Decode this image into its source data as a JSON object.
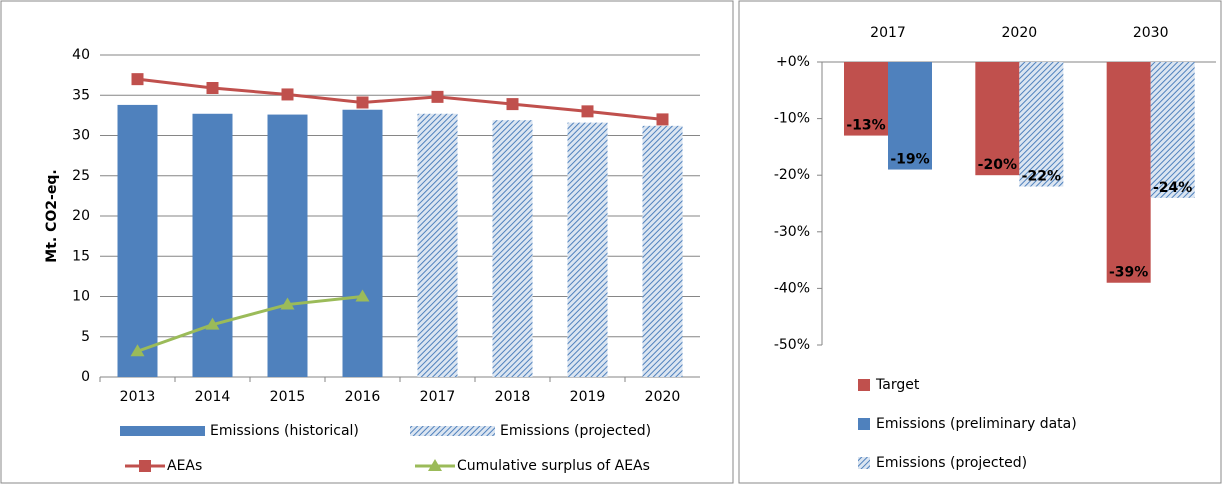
{
  "chart_data": [
    {
      "type": "combo",
      "y_label": "Mt. CO2-eq.",
      "categories": [
        "2013",
        "2014",
        "2015",
        "2016",
        "2017",
        "2018",
        "2019",
        "2020"
      ],
      "ylim": [
        0,
        40
      ],
      "yticks": [
        0,
        5,
        10,
        15,
        20,
        25,
        30,
        35,
        40
      ],
      "grid": true,
      "series": [
        {
          "name": "Emissions (historical)",
          "kind": "bar",
          "pattern": "solid",
          "color": "#4f81bd",
          "values": [
            33.8,
            32.7,
            32.6,
            33.2,
            null,
            null,
            null,
            null
          ]
        },
        {
          "name": "Emissions (projected)",
          "kind": "bar",
          "pattern": "hatch",
          "color": "#4f81bd",
          "values": [
            null,
            null,
            null,
            null,
            32.7,
            31.9,
            31.6,
            31.2
          ]
        },
        {
          "name": "AEAs",
          "kind": "line",
          "marker": "square",
          "color": "#c0504d",
          "values": [
            37.0,
            35.9,
            35.1,
            34.1,
            34.8,
            33.9,
            33.0,
            32.0
          ]
        },
        {
          "name": "Cumulative surplus of AEAs",
          "kind": "line",
          "marker": "triangle",
          "color": "#9bbb59",
          "values": [
            3.2,
            6.5,
            9.0,
            10.0,
            null,
            null,
            null,
            null
          ]
        }
      ]
    },
    {
      "type": "bar",
      "categories": [
        "2017",
        "2020",
        "2030"
      ],
      "ylim": [
        -50,
        0
      ],
      "yticks": [
        {
          "value": 0,
          "label": "+0%"
        },
        {
          "value": -10,
          "label": "-10%"
        },
        {
          "value": -20,
          "label": "-20%"
        },
        {
          "value": -30,
          "label": "-30%"
        },
        {
          "value": -40,
          "label": "-40%"
        },
        {
          "value": -50,
          "label": "-50%"
        }
      ],
      "series": [
        {
          "name": "Target",
          "pattern": "solid",
          "color": "#c0504d",
          "values": [
            -13,
            -20,
            -39
          ],
          "value_labels": [
            "-13%",
            "-20%",
            "-39%"
          ]
        },
        {
          "name": "Emissions (preliminary data)",
          "pattern": "solid",
          "color": "#4f81bd",
          "values": [
            -19,
            null,
            null
          ],
          "value_labels": [
            "-19%",
            null,
            null
          ]
        },
        {
          "name": "Emissions (projected)",
          "pattern": "hatch",
          "color": "#4f81bd",
          "values": [
            null,
            -22,
            -24
          ],
          "value_labels": [
            null,
            "-22%",
            "-24%"
          ]
        }
      ]
    }
  ]
}
